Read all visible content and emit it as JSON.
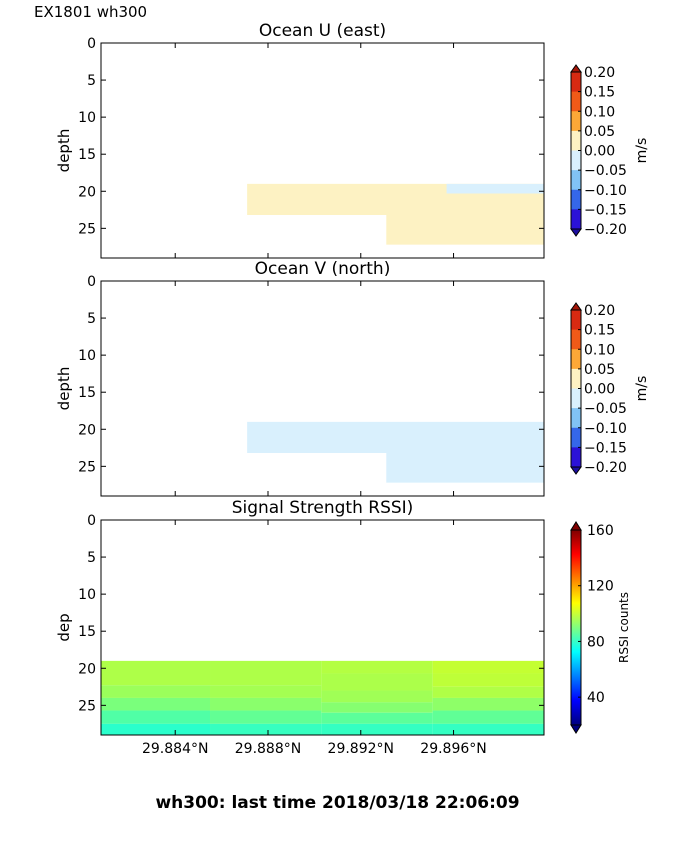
{
  "figure": {
    "header_label": "EX1801 wh300",
    "footer_title": "wh300: last time 2018/03/18 22:06:09"
  },
  "chart_data": [
    {
      "type": "heatmap",
      "title": "Ocean U (east)",
      "ylabel": "depth",
      "xlabel": "",
      "ylim": [
        29,
        0
      ],
      "yticks": [
        0,
        5,
        10,
        15,
        20,
        25
      ],
      "x_range_deg": [
        29.8808,
        29.8999
      ],
      "xticks": [
        29.884,
        29.888,
        29.892,
        29.896
      ],
      "xtick_labels": [
        "",
        "",
        "",
        ""
      ],
      "colorbar": {
        "label": "m/s",
        "ticks": [
          "0.20",
          "0.15",
          "0.10",
          "0.05",
          "0.00",
          "−0.05",
          "−0.10",
          "−0.15",
          "−0.20"
        ],
        "levels": [
          {
            "from": 0.15,
            "to": 0.2,
            "color": "#d72a12"
          },
          {
            "from": 0.1,
            "to": 0.15,
            "color": "#f05a18"
          },
          {
            "from": 0.05,
            "to": 0.1,
            "color": "#fca837"
          },
          {
            "from": 0.0,
            "to": 0.05,
            "color": "#fdf2c3"
          },
          {
            "from": -0.05,
            "to": 0.0,
            "color": "#d9f0fd"
          },
          {
            "from": -0.1,
            "to": -0.05,
            "color": "#81c3f5"
          },
          {
            "from": -0.15,
            "to": -0.1,
            "color": "#3567e9"
          },
          {
            "from": -0.2,
            "to": -0.15,
            "color": "#2b12d7"
          }
        ],
        "over_color": "#a41608",
        "under_color": "#1c0ea0"
      },
      "cells": [
        {
          "x0": 29.8871,
          "x1": 29.8999,
          "y0": 19,
          "y1": 23.2,
          "value": 0.02
        },
        {
          "x0": 29.8931,
          "x1": 29.8999,
          "y0": 23.2,
          "y1": 27.2,
          "value": 0.02
        },
        {
          "x0": 29.8957,
          "x1": 29.8999,
          "y0": 19,
          "y1": 20.3,
          "value": -0.02
        }
      ]
    },
    {
      "type": "heatmap",
      "title": "Ocean V (north)",
      "ylabel": "depth",
      "xlabel": "",
      "ylim": [
        29,
        0
      ],
      "yticks": [
        0,
        5,
        10,
        15,
        20,
        25
      ],
      "x_range_deg": [
        29.8808,
        29.8999
      ],
      "xticks": [
        29.884,
        29.888,
        29.892,
        29.896
      ],
      "xtick_labels": [
        "",
        "",
        "",
        ""
      ],
      "colorbar": {
        "label": "m/s",
        "ticks": [
          "0.20",
          "0.15",
          "0.10",
          "0.05",
          "0.00",
          "−0.05",
          "−0.10",
          "−0.15",
          "−0.20"
        ],
        "levels": [
          {
            "from": 0.15,
            "to": 0.2,
            "color": "#d72a12"
          },
          {
            "from": 0.1,
            "to": 0.15,
            "color": "#f05a18"
          },
          {
            "from": 0.05,
            "to": 0.1,
            "color": "#fca837"
          },
          {
            "from": 0.0,
            "to": 0.05,
            "color": "#fdf2c3"
          },
          {
            "from": -0.05,
            "to": 0.0,
            "color": "#d9f0fd"
          },
          {
            "from": -0.1,
            "to": -0.05,
            "color": "#81c3f5"
          },
          {
            "from": -0.15,
            "to": -0.1,
            "color": "#3567e9"
          },
          {
            "from": -0.2,
            "to": -0.15,
            "color": "#2b12d7"
          }
        ],
        "over_color": "#a41608",
        "under_color": "#1c0ea0"
      },
      "cells": [
        {
          "x0": 29.8871,
          "x1": 29.8999,
          "y0": 19,
          "y1": 23.2,
          "value": -0.02
        },
        {
          "x0": 29.8931,
          "x1": 29.8999,
          "y0": 23.2,
          "y1": 27.2,
          "value": -0.02
        }
      ]
    },
    {
      "type": "heatmap",
      "title": "Signal Strength RSSI)",
      "ylabel": "dep",
      "xlabel": "",
      "ylim": [
        29,
        0
      ],
      "yticks": [
        0,
        5,
        10,
        15,
        20,
        25
      ],
      "x_range_deg": [
        29.8808,
        29.8999
      ],
      "xticks": [
        29.884,
        29.888,
        29.892,
        29.896
      ],
      "xtick_labels": [
        "29.884°N",
        "29.888°N",
        "29.892°N",
        "29.896°N"
      ],
      "colorbar": {
        "label": "RSSI counts",
        "range": [
          20,
          160
        ],
        "ticks": [
          "160",
          "120",
          "80",
          "40"
        ],
        "tick_values": [
          160,
          120,
          80,
          40
        ],
        "gradient": [
          "#00007f",
          "#0000ff",
          "#0080ff",
          "#00ffff",
          "#80ff80",
          "#ffff00",
          "#ff8000",
          "#ff0000",
          "#7f0000"
        ],
        "over_color": "#7f0000",
        "under_color": "#00007f"
      },
      "cells": [
        {
          "x0": 29.8808,
          "x1": 29.8855,
          "y0": 19,
          "y1": 22.3,
          "color": "#aeff48"
        },
        {
          "x0": 29.8808,
          "x1": 29.8855,
          "y0": 22.3,
          "y1": 24.0,
          "color": "#9bff5b"
        },
        {
          "x0": 29.8808,
          "x1": 29.8855,
          "y0": 24.0,
          "y1": 25.7,
          "color": "#7aff7c"
        },
        {
          "x0": 29.8808,
          "x1": 29.8855,
          "y0": 25.7,
          "y1": 27.5,
          "color": "#50ffa6"
        },
        {
          "x0": 29.8808,
          "x1": 29.8855,
          "y0": 27.5,
          "y1": 29,
          "color": "#2affcc"
        },
        {
          "x0": 29.8855,
          "x1": 29.8903,
          "y0": 19,
          "y1": 22.3,
          "color": "#aeff48"
        },
        {
          "x0": 29.8855,
          "x1": 29.8903,
          "y0": 22.3,
          "y1": 24.0,
          "color": "#a4ff52"
        },
        {
          "x0": 29.8855,
          "x1": 29.8903,
          "y0": 24.0,
          "y1": 25.7,
          "color": "#8aff6c"
        },
        {
          "x0": 29.8855,
          "x1": 29.8903,
          "y0": 25.7,
          "y1": 27.5,
          "color": "#62ff94"
        },
        {
          "x0": 29.8855,
          "x1": 29.8903,
          "y0": 27.5,
          "y1": 29,
          "color": "#36ffc0"
        },
        {
          "x0": 29.8903,
          "x1": 29.8951,
          "y0": 19,
          "y1": 20.7,
          "color": "#b4ff42"
        },
        {
          "x0": 29.8903,
          "x1": 29.8951,
          "y0": 20.7,
          "y1": 23.0,
          "color": "#acff4a"
        },
        {
          "x0": 29.8903,
          "x1": 29.8951,
          "y0": 23.0,
          "y1": 24.6,
          "color": "#a0ff56"
        },
        {
          "x0": 29.8903,
          "x1": 29.8951,
          "y0": 24.6,
          "y1": 26.0,
          "color": "#86ff70"
        },
        {
          "x0": 29.8903,
          "x1": 29.8951,
          "y0": 26.0,
          "y1": 27.5,
          "color": "#5cff9a"
        },
        {
          "x0": 29.8903,
          "x1": 29.8951,
          "y0": 27.5,
          "y1": 29,
          "color": "#34ffc2"
        },
        {
          "x0": 29.8951,
          "x1": 29.8999,
          "y0": 19,
          "y1": 20.7,
          "color": "#c4ff32"
        },
        {
          "x0": 29.8951,
          "x1": 29.8999,
          "y0": 20.7,
          "y1": 22.5,
          "color": "#beff38"
        },
        {
          "x0": 29.8951,
          "x1": 29.8999,
          "y0": 22.5,
          "y1": 24.0,
          "color": "#b0ff46"
        },
        {
          "x0": 29.8951,
          "x1": 29.8999,
          "y0": 24.0,
          "y1": 25.7,
          "color": "#8eff68"
        },
        {
          "x0": 29.8951,
          "x1": 29.8999,
          "y0": 25.7,
          "y1": 27.5,
          "color": "#60ff96"
        },
        {
          "x0": 29.8951,
          "x1": 29.8999,
          "y0": 27.5,
          "y1": 29,
          "color": "#34ffc2"
        }
      ]
    }
  ]
}
